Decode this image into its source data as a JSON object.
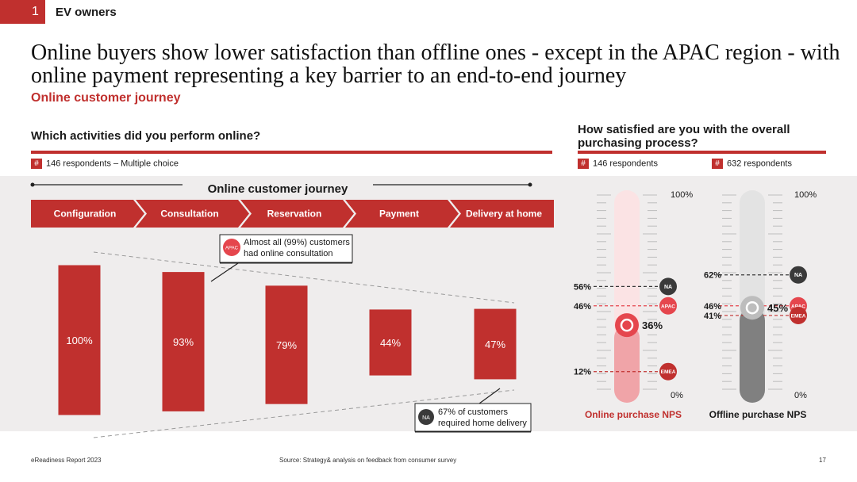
{
  "header": {
    "section_number": "1",
    "section_label": "EV owners",
    "headline": "Online buyers show lower satisfaction than offline ones - except in the APAC region - with online payment representing a key barrier to an end-to-end journey",
    "subheadline": "Online customer journey"
  },
  "left_panel": {
    "question": "Which activities did you perform online?",
    "respondents": "146 respondents – Multiple choice",
    "journey_title": "Online customer journey",
    "callout_top": {
      "badge": "APAC",
      "line1": "Almost all (99%) customers",
      "line2": "had online consultation"
    },
    "callout_bottom": {
      "badge": "NA",
      "line1": "67% of customers",
      "line2": "required home delivery"
    }
  },
  "right_panel": {
    "question_line1": "How satisfied are you with the overall",
    "question_line2": "purchasing process?",
    "respondents_online": "146 respondents",
    "respondents_offline": "632 respondents",
    "hash_symbol": "#"
  },
  "chart_data": [
    {
      "type": "bar",
      "categories": [
        "Configuration",
        "Consultation",
        "Reservation",
        "Payment",
        "Delivery at home"
      ],
      "values": [
        100,
        93,
        79,
        44,
        47
      ],
      "value_labels": [
        "100%",
        "93%",
        "79%",
        "44%",
        "47%"
      ],
      "ylim": [
        0,
        100
      ],
      "color": "#c0302e"
    },
    {
      "type": "gauge",
      "title": "Online purchase NPS",
      "value": 36,
      "value_label": "36%",
      "scale_max_label": "100%",
      "scale_min_label": "0%",
      "markers": [
        {
          "label": "NA",
          "value": 56,
          "value_label": "56%"
        },
        {
          "label": "APAC",
          "value": 46,
          "value_label": "46%"
        },
        {
          "label": "EMEA",
          "value": 12,
          "value_label": "12%"
        }
      ],
      "colors": {
        "fill": "#f0a4a8",
        "track": "#fbe3e4",
        "knob": "#e5464d"
      }
    },
    {
      "type": "gauge",
      "title": "Offline purchase NPS",
      "value": 45,
      "value_label": "45%",
      "scale_max_label": "100%",
      "scale_min_label": "0%",
      "markers": [
        {
          "label": "NA",
          "value": 62,
          "value_label": "62%"
        },
        {
          "label": "APAC",
          "value": 46,
          "value_label": "46%"
        },
        {
          "label": "EMEA",
          "value": 41,
          "value_label": "41%"
        }
      ],
      "colors": {
        "fill": "#808080",
        "track": "#e3e3e3",
        "knob": "#bdbdbd"
      }
    }
  ],
  "marker_colors": {
    "NA": "#3a3a3a",
    "APAC": "#e5464d",
    "EMEA": "#c0302e"
  },
  "footer": {
    "left": "eReadiness Report 2023",
    "source": "Source: Strategy& analysis on feedback from consumer survey",
    "page": "17"
  }
}
